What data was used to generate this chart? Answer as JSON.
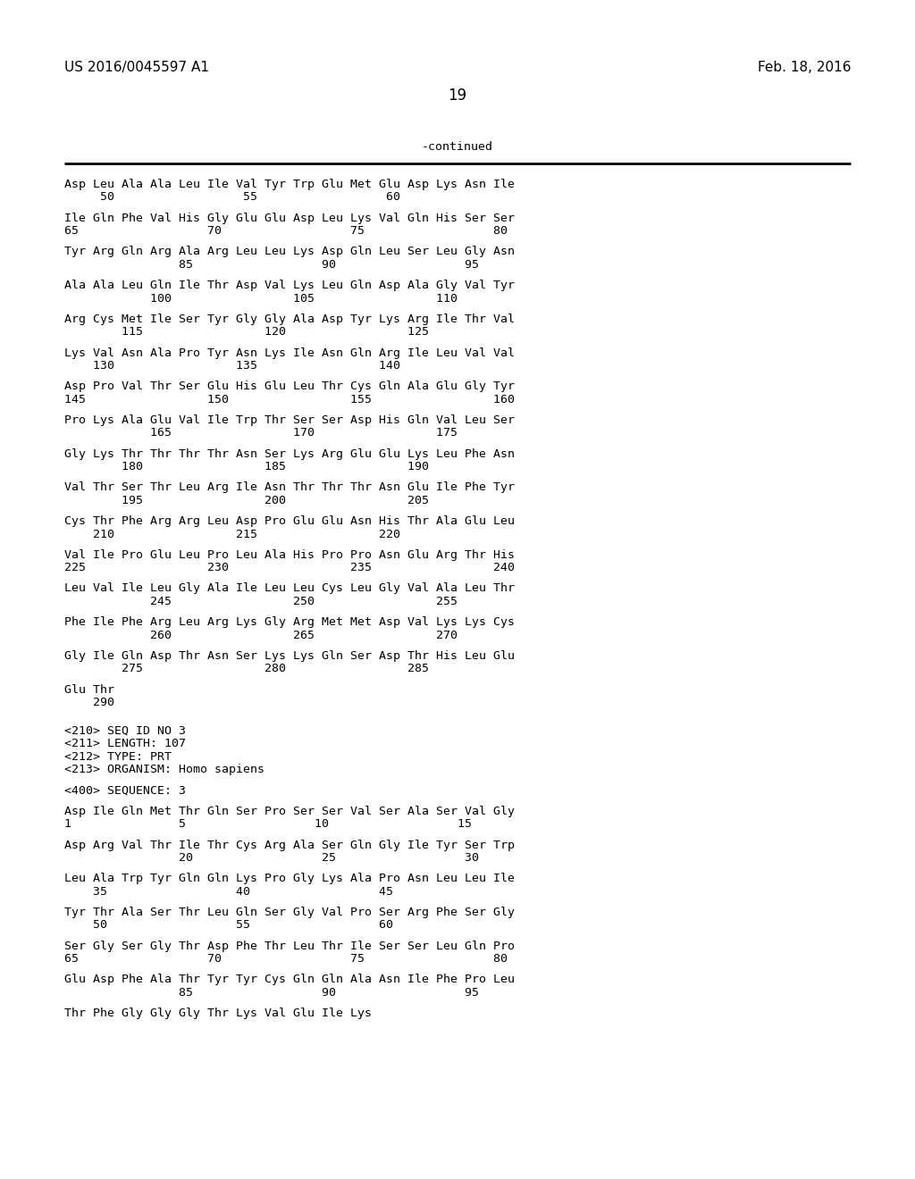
{
  "header_left": "US 2016/0045597 A1",
  "header_right": "Feb. 18, 2016",
  "page_number": "19",
  "continued_label": "-continued",
  "background_color": "#ffffff",
  "text_color": "#000000",
  "font_size_header": 11,
  "font_size_body": 9.5,
  "font_size_page": 12,
  "body_lines": [
    {
      "indent": 0,
      "text": "Asp Leu Ala Ala Leu Ile Val Tyr Trp Glu Met Glu Asp Lys Asn Ile"
    },
    {
      "indent": 1,
      "text": "     50                  55                  60"
    },
    {
      "indent": 0,
      "text": ""
    },
    {
      "indent": 0,
      "text": "Ile Gln Phe Val His Gly Glu Glu Asp Leu Lys Val Gln His Ser Ser"
    },
    {
      "indent": 1,
      "text": "65                  70                  75                  80"
    },
    {
      "indent": 0,
      "text": ""
    },
    {
      "indent": 0,
      "text": "Tyr Arg Gln Arg Ala Arg Leu Leu Lys Asp Gln Leu Ser Leu Gly Asn"
    },
    {
      "indent": 1,
      "text": "                85                  90                  95"
    },
    {
      "indent": 0,
      "text": ""
    },
    {
      "indent": 0,
      "text": "Ala Ala Leu Gln Ile Thr Asp Val Lys Leu Gln Asp Ala Gly Val Tyr"
    },
    {
      "indent": 1,
      "text": "            100                 105                 110"
    },
    {
      "indent": 0,
      "text": ""
    },
    {
      "indent": 0,
      "text": "Arg Cys Met Ile Ser Tyr Gly Gly Ala Asp Tyr Lys Arg Ile Thr Val"
    },
    {
      "indent": 1,
      "text": "        115                 120                 125"
    },
    {
      "indent": 0,
      "text": ""
    },
    {
      "indent": 0,
      "text": "Lys Val Asn Ala Pro Tyr Asn Lys Ile Asn Gln Arg Ile Leu Val Val"
    },
    {
      "indent": 1,
      "text": "    130                 135                 140"
    },
    {
      "indent": 0,
      "text": ""
    },
    {
      "indent": 0,
      "text": "Asp Pro Val Thr Ser Glu His Glu Leu Thr Cys Gln Ala Glu Gly Tyr"
    },
    {
      "indent": 1,
      "text": "145                 150                 155                 160"
    },
    {
      "indent": 0,
      "text": ""
    },
    {
      "indent": 0,
      "text": "Pro Lys Ala Glu Val Ile Trp Thr Ser Ser Asp His Gln Val Leu Ser"
    },
    {
      "indent": 1,
      "text": "            165                 170                 175"
    },
    {
      "indent": 0,
      "text": ""
    },
    {
      "indent": 0,
      "text": "Gly Lys Thr Thr Thr Thr Asn Ser Lys Arg Glu Glu Lys Leu Phe Asn"
    },
    {
      "indent": 1,
      "text": "        180                 185                 190"
    },
    {
      "indent": 0,
      "text": ""
    },
    {
      "indent": 0,
      "text": "Val Thr Ser Thr Leu Arg Ile Asn Thr Thr Thr Asn Glu Ile Phe Tyr"
    },
    {
      "indent": 1,
      "text": "        195                 200                 205"
    },
    {
      "indent": 0,
      "text": ""
    },
    {
      "indent": 0,
      "text": "Cys Thr Phe Arg Arg Leu Asp Pro Glu Glu Asn His Thr Ala Glu Leu"
    },
    {
      "indent": 1,
      "text": "    210                 215                 220"
    },
    {
      "indent": 0,
      "text": ""
    },
    {
      "indent": 0,
      "text": "Val Ile Pro Glu Leu Pro Leu Ala His Pro Pro Asn Glu Arg Thr His"
    },
    {
      "indent": 1,
      "text": "225                 230                 235                 240"
    },
    {
      "indent": 0,
      "text": ""
    },
    {
      "indent": 0,
      "text": "Leu Val Ile Leu Gly Ala Ile Leu Leu Cys Leu Gly Val Ala Leu Thr"
    },
    {
      "indent": 1,
      "text": "            245                 250                 255"
    },
    {
      "indent": 0,
      "text": ""
    },
    {
      "indent": 0,
      "text": "Phe Ile Phe Arg Leu Arg Lys Gly Arg Met Met Asp Val Lys Lys Cys"
    },
    {
      "indent": 1,
      "text": "            260                 265                 270"
    },
    {
      "indent": 0,
      "text": ""
    },
    {
      "indent": 0,
      "text": "Gly Ile Gln Asp Thr Asn Ser Lys Lys Gln Ser Asp Thr His Leu Glu"
    },
    {
      "indent": 1,
      "text": "        275                 280                 285"
    },
    {
      "indent": 0,
      "text": ""
    },
    {
      "indent": 0,
      "text": "Glu Thr"
    },
    {
      "indent": 1,
      "text": "    290"
    },
    {
      "indent": 0,
      "text": ""
    },
    {
      "indent": 0,
      "text": ""
    },
    {
      "indent": 0,
      "text": "<210> SEQ ID NO 3"
    },
    {
      "indent": 0,
      "text": "<211> LENGTH: 107"
    },
    {
      "indent": 0,
      "text": "<212> TYPE: PRT"
    },
    {
      "indent": 0,
      "text": "<213> ORGANISM: Homo sapiens"
    },
    {
      "indent": 0,
      "text": ""
    },
    {
      "indent": 0,
      "text": "<400> SEQUENCE: 3"
    },
    {
      "indent": 0,
      "text": ""
    },
    {
      "indent": 0,
      "text": "Asp Ile Gln Met Thr Gln Ser Pro Ser Ser Val Ser Ala Ser Val Gly"
    },
    {
      "indent": 1,
      "text": "1               5                  10                  15"
    },
    {
      "indent": 0,
      "text": ""
    },
    {
      "indent": 0,
      "text": "Asp Arg Val Thr Ile Thr Cys Arg Ala Ser Gln Gly Ile Tyr Ser Trp"
    },
    {
      "indent": 1,
      "text": "                20                  25                  30"
    },
    {
      "indent": 0,
      "text": ""
    },
    {
      "indent": 0,
      "text": "Leu Ala Trp Tyr Gln Gln Lys Pro Gly Lys Ala Pro Asn Leu Leu Ile"
    },
    {
      "indent": 1,
      "text": "    35                  40                  45"
    },
    {
      "indent": 0,
      "text": ""
    },
    {
      "indent": 0,
      "text": "Tyr Thr Ala Ser Thr Leu Gln Ser Gly Val Pro Ser Arg Phe Ser Gly"
    },
    {
      "indent": 1,
      "text": "    50                  55                  60"
    },
    {
      "indent": 0,
      "text": ""
    },
    {
      "indent": 0,
      "text": "Ser Gly Ser Gly Thr Asp Phe Thr Leu Thr Ile Ser Ser Leu Gln Pro"
    },
    {
      "indent": 1,
      "text": "65                  70                  75                  80"
    },
    {
      "indent": 0,
      "text": ""
    },
    {
      "indent": 0,
      "text": "Glu Asp Phe Ala Thr Tyr Tyr Cys Gln Gln Ala Asn Ile Phe Pro Leu"
    },
    {
      "indent": 1,
      "text": "                85                  90                  95"
    },
    {
      "indent": 0,
      "text": ""
    },
    {
      "indent": 0,
      "text": "Thr Phe Gly Gly Gly Thr Lys Val Glu Ile Lys"
    }
  ]
}
